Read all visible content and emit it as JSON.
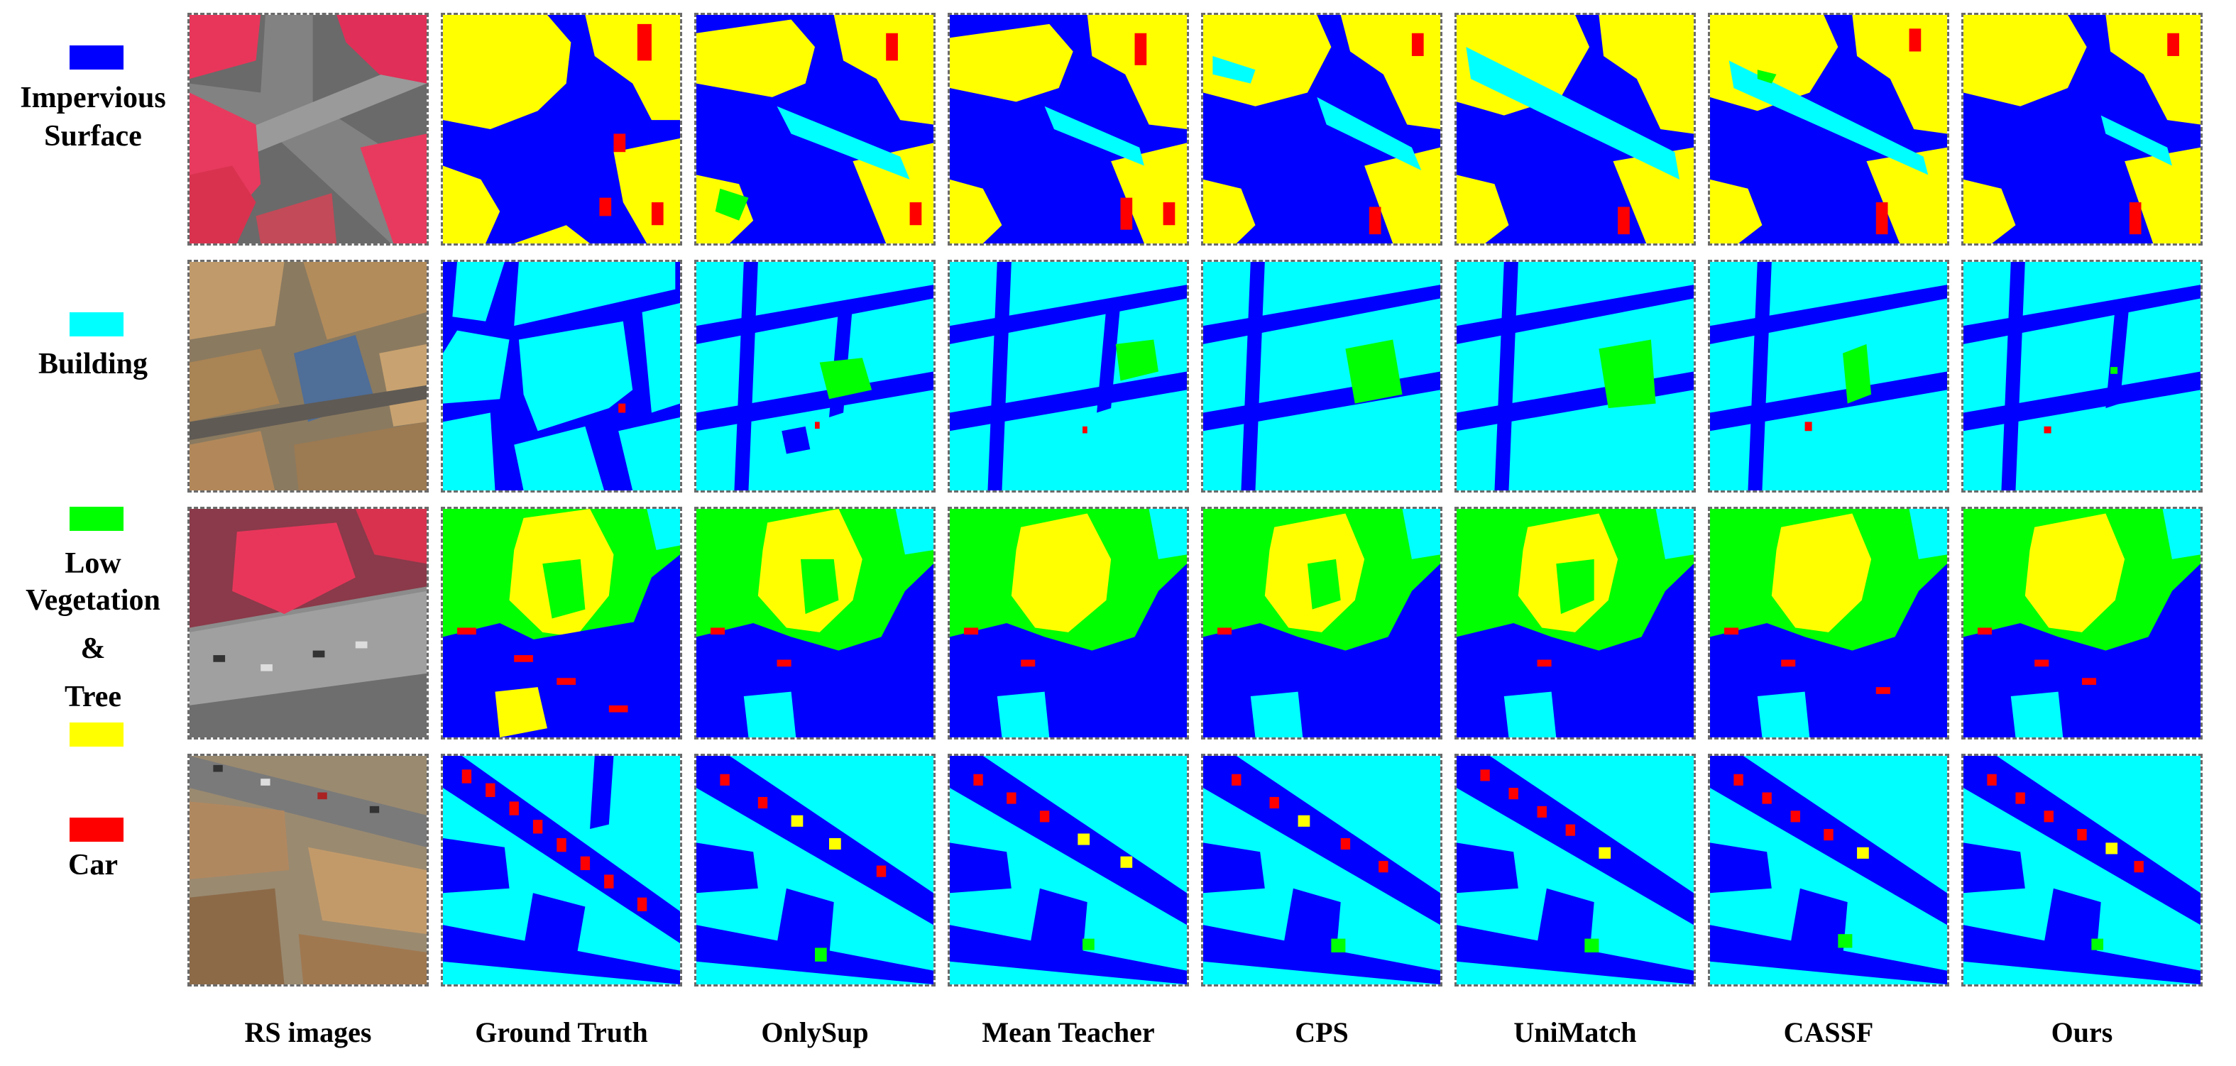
{
  "classes": {
    "impervious_surface": {
      "label_line1": "Impervious",
      "label_line2": "Surface",
      "color": "#0000ff"
    },
    "building": {
      "label": "Building",
      "color": "#00ffff"
    },
    "low_vegetation": {
      "label_line1": "Low",
      "label_line2": "Vegetation",
      "color": "#00ff00"
    },
    "connector": "&",
    "tree": {
      "label": "Tree",
      "color": "#ffff00"
    },
    "car": {
      "label": "Car",
      "color": "#ff0000"
    }
  },
  "columns": [
    "RS images",
    "Ground Truth",
    "OnlySup",
    "Mean Teacher",
    "CPS",
    "UniMatch",
    "CASSF",
    "Ours"
  ]
}
